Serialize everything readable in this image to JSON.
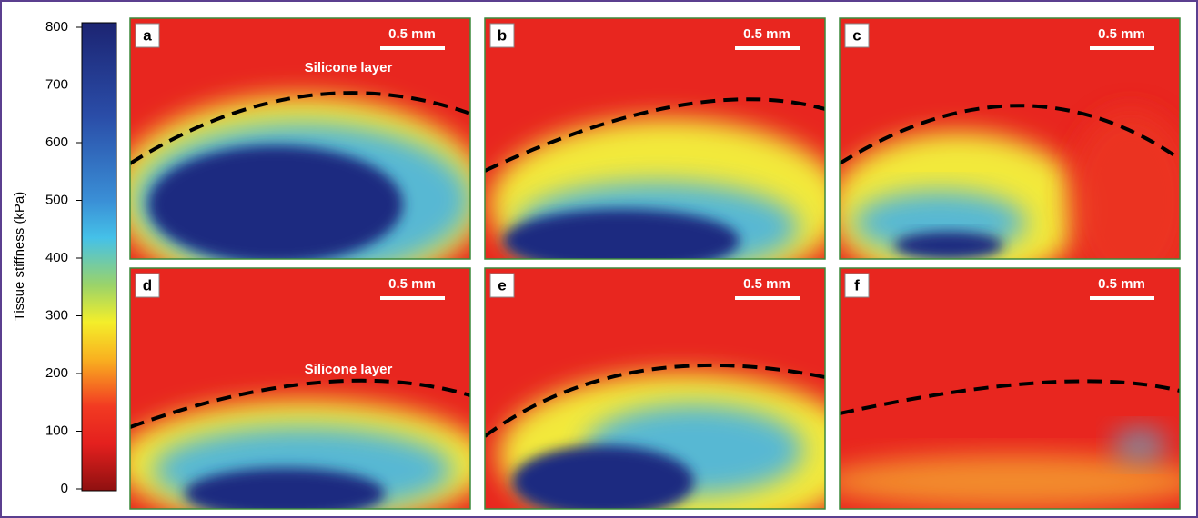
{
  "colorbar": {
    "label": "Tissue stiffness (kPa)",
    "lim": [
      0,
      800
    ],
    "ticks": [
      0,
      100,
      200,
      300,
      400,
      500,
      600,
      700,
      800
    ]
  },
  "panels": [
    {
      "label": "a",
      "scale_bar": "0.5 mm",
      "annotation": "Silicone layer"
    },
    {
      "label": "b",
      "scale_bar": "0.5 mm"
    },
    {
      "label": "c",
      "scale_bar": "0.5 mm"
    },
    {
      "label": "d",
      "scale_bar": "0.5 mm",
      "annotation": "Silicone layer"
    },
    {
      "label": "e",
      "scale_bar": "0.5 mm"
    },
    {
      "label": "f",
      "scale_bar": "0.5 mm"
    }
  ]
}
